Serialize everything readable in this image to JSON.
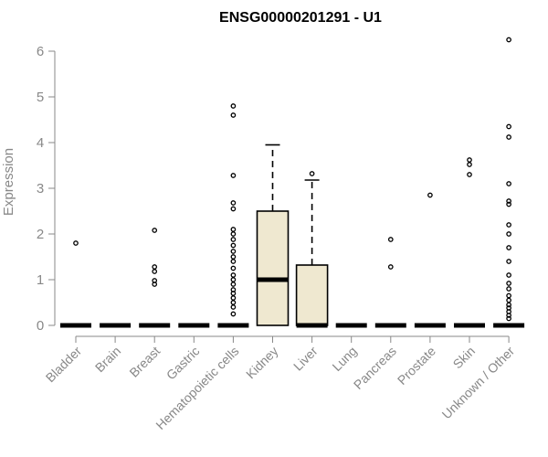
{
  "chart_data": {
    "type": "box",
    "title": "ENSG00000201291 - U1",
    "xlabel": "",
    "ylabel": "Expression",
    "ylim": [
      0,
      6.3
    ],
    "yticks": [
      0,
      1,
      2,
      3,
      4,
      5,
      6
    ],
    "grid": false,
    "categories": [
      "Bladder",
      "Brain",
      "Breast",
      "Gastric",
      "Hematopoietic cells",
      "Kidney",
      "Liver",
      "Lung",
      "Pancreas",
      "Prostate",
      "Skin",
      "Unknown / Other"
    ],
    "boxes": [
      {
        "min": 0,
        "q1": 0,
        "median": 0,
        "q3": 0,
        "max": 0,
        "outliers": [
          1.8
        ]
      },
      {
        "min": 0,
        "q1": 0,
        "median": 0,
        "q3": 0,
        "max": 0,
        "outliers": []
      },
      {
        "min": 0,
        "q1": 0,
        "median": 0,
        "q3": 0,
        "max": 0,
        "outliers": [
          2.08,
          1.28,
          1.18,
          0.98,
          0.9
        ]
      },
      {
        "min": 0,
        "q1": 0,
        "median": 0,
        "q3": 0,
        "max": 0,
        "outliers": []
      },
      {
        "min": 0,
        "q1": 0,
        "median": 0,
        "q3": 0,
        "max": 0,
        "outliers": [
          4.8,
          4.6,
          3.28,
          2.68,
          2.55,
          2.1,
          2.0,
          1.88,
          1.75,
          1.62,
          1.5,
          1.4,
          1.25,
          1.1,
          1.0,
          0.9,
          0.78,
          0.7,
          0.6,
          0.5,
          0.4,
          0.25
        ]
      },
      {
        "min": 0,
        "q1": 0,
        "median": 1.0,
        "q3": 2.5,
        "max": 3.95,
        "outliers": []
      },
      {
        "min": 0,
        "q1": 0,
        "median": 0,
        "q3": 1.32,
        "max": 3.18,
        "outliers": [
          3.32
        ]
      },
      {
        "min": 0,
        "q1": 0,
        "median": 0,
        "q3": 0,
        "max": 0,
        "outliers": []
      },
      {
        "min": 0,
        "q1": 0,
        "median": 0,
        "q3": 0,
        "max": 0,
        "outliers": [
          1.88,
          1.28
        ]
      },
      {
        "min": 0,
        "q1": 0,
        "median": 0,
        "q3": 0,
        "max": 0,
        "outliers": [
          2.85
        ]
      },
      {
        "min": 0,
        "q1": 0,
        "median": 0,
        "q3": 0,
        "max": 0,
        "outliers": [
          3.62,
          3.52,
          3.3
        ]
      },
      {
        "min": 0,
        "q1": 0,
        "median": 0,
        "q3": 0,
        "max": 0,
        "outliers": [
          6.25,
          4.35,
          4.12,
          3.1,
          2.72,
          2.65,
          2.2,
          2.0,
          1.7,
          1.4,
          1.1,
          0.92,
          0.8,
          0.65,
          0.55,
          0.45,
          0.38,
          0.3,
          0.22,
          0.15
        ]
      }
    ]
  }
}
